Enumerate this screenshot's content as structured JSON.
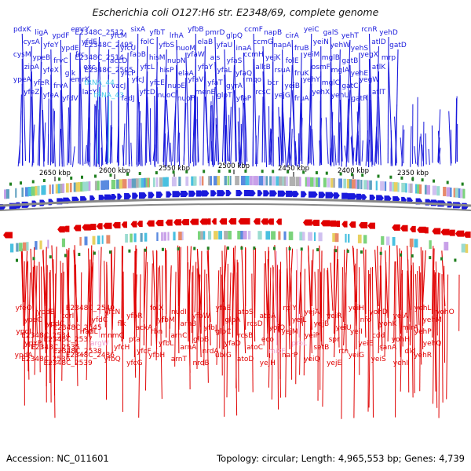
{
  "map": {
    "title": "Escherichia coli O127:H6 str. E2348/69, complete genome",
    "accession": "Accession: NC_011601",
    "summary": "Topology: circular; Length: 4,965,553 bp; Genes: 4,739"
  },
  "kbp_ticks": [
    "2650 kbp",
    "2600 kbp",
    "2550 kbp",
    "2500 kbp",
    "2450 kbp",
    "2400 kbp",
    "2350 kbp"
  ],
  "colors": {
    "forward": "#1a1adc",
    "reverse": "#e00000",
    "rna": "#44c8e8",
    "rna_reverse": "#f0a0d0",
    "backbone": "#888888"
  },
  "forward_labels": [
    {
      "text": "pdxK",
      "c": "f"
    },
    {
      "text": "cysA",
      "c": "f"
    },
    {
      "text": "cysM",
      "c": "f"
    },
    {
      "text": "zipA",
      "c": "f"
    },
    {
      "text": "ypeA",
      "c": "f"
    },
    {
      "text": "yfeZ",
      "c": "f"
    },
    {
      "text": "ligA",
      "c": "f"
    },
    {
      "text": "yfeY",
      "c": "f"
    },
    {
      "text": "ypeB",
      "c": "f"
    },
    {
      "text": "yfeX",
      "c": "f"
    },
    {
      "text": "yfeR",
      "c": "f"
    },
    {
      "text": "yfeA",
      "c": "f"
    },
    {
      "text": "ypdF",
      "c": "f"
    },
    {
      "text": "ypdE",
      "c": "f"
    },
    {
      "text": "frvC",
      "c": "f"
    },
    {
      "text": "glk",
      "c": "f"
    },
    {
      "text": "frvA",
      "c": "f"
    },
    {
      "text": "yfdV",
      "c": "f"
    },
    {
      "text": "emrY",
      "c": "f"
    },
    {
      "text": "yfdE",
      "c": "f"
    },
    {
      "text": "frc",
      "c": "f"
    },
    {
      "text": "oxc",
      "c": "f"
    },
    {
      "text": "emrK",
      "c": "f"
    },
    {
      "text": "lacY",
      "c": "f"
    },
    {
      "text": "E2348C_2512",
      "c": "f"
    },
    {
      "text": "E2348C_2495",
      "c": "f"
    },
    {
      "text": "E2348C_2514",
      "c": "f"
    },
    {
      "text": "E2348C_2505",
      "c": "f"
    },
    {
      "text": "tRNA_44",
      "c": "r"
    },
    {
      "text": "tRNA_43",
      "c": "r"
    },
    {
      "text": "yfcM",
      "c": "f"
    },
    {
      "text": "yfcU",
      "c": "f"
    },
    {
      "text": "accD",
      "c": "f"
    },
    {
      "text": "yfcP",
      "c": "f"
    },
    {
      "text": "vacJ",
      "c": "f"
    },
    {
      "text": "fadJ",
      "c": "f"
    },
    {
      "text": "sixA",
      "c": "f"
    },
    {
      "text": "folC",
      "c": "f"
    },
    {
      "text": "fabB",
      "c": "f"
    },
    {
      "text": "yfcL",
      "c": "f"
    },
    {
      "text": "yfcJ",
      "c": "f"
    },
    {
      "text": "yfcD",
      "c": "f"
    },
    {
      "text": "yfbT",
      "c": "f"
    },
    {
      "text": "yfbS",
      "c": "f"
    },
    {
      "text": "hisM",
      "c": "f"
    },
    {
      "text": "hisP",
      "c": "f"
    },
    {
      "text": "yfcE",
      "c": "f"
    },
    {
      "text": "nuoC",
      "c": "f"
    },
    {
      "text": "lrhA",
      "c": "f"
    },
    {
      "text": "nuoM",
      "c": "f"
    },
    {
      "text": "nuoN",
      "c": "f"
    },
    {
      "text": "elaA",
      "c": "f"
    },
    {
      "text": "nuoE",
      "c": "f"
    },
    {
      "text": "nuoF",
      "c": "f"
    },
    {
      "text": "yfbB",
      "c": "f"
    },
    {
      "text": "elaB",
      "c": "f"
    },
    {
      "text": "yfaW",
      "c": "f"
    },
    {
      "text": "yfaY",
      "c": "f"
    },
    {
      "text": "yfaV",
      "c": "f"
    },
    {
      "text": "menE",
      "c": "f"
    },
    {
      "text": "pmrD",
      "c": "f"
    },
    {
      "text": "yfaU",
      "c": "f"
    },
    {
      "text": "ais",
      "c": "f"
    },
    {
      "text": "yfaL",
      "c": "f"
    },
    {
      "text": "yfaT",
      "c": "f"
    },
    {
      "text": "glpT",
      "c": "f"
    },
    {
      "text": "glpQ",
      "c": "f"
    },
    {
      "text": "inaA",
      "c": "f"
    },
    {
      "text": "yfaS",
      "c": "f"
    },
    {
      "text": "yfaQ",
      "c": "f"
    },
    {
      "text": "gyrA",
      "c": "f"
    },
    {
      "text": "yfaP",
      "c": "f"
    },
    {
      "text": "ccmF",
      "c": "f"
    },
    {
      "text": "ccmG",
      "c": "f"
    },
    {
      "text": "ccmH",
      "c": "f"
    },
    {
      "text": "alkB",
      "c": "f"
    },
    {
      "text": "mqo",
      "c": "f"
    },
    {
      "text": "rcsC",
      "c": "f"
    },
    {
      "text": "napB",
      "c": "f"
    },
    {
      "text": "napA",
      "c": "f"
    },
    {
      "text": "yejK",
      "c": "f"
    },
    {
      "text": "rsuA",
      "c": "f"
    },
    {
      "text": "bcr",
      "c": "f"
    },
    {
      "text": "yejG",
      "c": "f"
    },
    {
      "text": "cirA",
      "c": "f"
    },
    {
      "text": "fruB",
      "c": "f"
    },
    {
      "text": "folE",
      "c": "f"
    },
    {
      "text": "fruK",
      "c": "f"
    },
    {
      "text": "yeiB",
      "c": "f"
    },
    {
      "text": "fruA",
      "c": "f"
    },
    {
      "text": "yeiC",
      "c": "f"
    },
    {
      "text": "yeiN",
      "c": "f"
    },
    {
      "text": "yeiM",
      "c": "f"
    },
    {
      "text": "osmF",
      "c": "f"
    },
    {
      "text": "yehY",
      "c": "f"
    },
    {
      "text": "yehX",
      "c": "f"
    },
    {
      "text": "galS",
      "c": "f"
    },
    {
      "text": "yehW",
      "c": "f"
    },
    {
      "text": "mglB",
      "c": "f"
    },
    {
      "text": "mglA",
      "c": "f"
    },
    {
      "text": "mglC",
      "c": "f"
    },
    {
      "text": "yehU",
      "c": "f"
    },
    {
      "text": "yehT",
      "c": "f"
    },
    {
      "text": "yehS",
      "c": "f"
    },
    {
      "text": "gatB",
      "c": "f"
    },
    {
      "text": "yehE",
      "c": "f"
    },
    {
      "text": "gatC",
      "c": "f"
    },
    {
      "text": "gatR",
      "c": "f"
    },
    {
      "text": "rcnR",
      "c": "f"
    },
    {
      "text": "atlD",
      "c": "f"
    },
    {
      "text": "yegX",
      "c": "f"
    },
    {
      "text": "atlK",
      "c": "f"
    },
    {
      "text": "yegW",
      "c": "f"
    },
    {
      "text": "atlT",
      "c": "f"
    },
    {
      "text": "yehD",
      "c": "f"
    },
    {
      "text": "gatD",
      "c": "f"
    },
    {
      "text": "mrp",
      "c": "f"
    }
  ],
  "reverse_labels": [
    {
      "text": "yfeO",
      "c": "r"
    },
    {
      "text": "ypeC",
      "c": "r"
    },
    {
      "text": "ypdI",
      "c": "r"
    },
    {
      "text": "ypxP",
      "c": "r"
    },
    {
      "text": "ypdA",
      "c": "r"
    },
    {
      "text": "ypdB",
      "c": "r"
    },
    {
      "text": "ypdC",
      "c": "r"
    },
    {
      "text": "E2348C_2534",
      "c": "r"
    },
    {
      "text": "E2348C_2535",
      "c": "r"
    },
    {
      "text": "E2348C_2536",
      "c": "r"
    },
    {
      "text": "torI",
      "c": "r"
    },
    {
      "text": "E2348C_2545",
      "c": "r"
    },
    {
      "text": "E2348C_2537",
      "c": "r"
    },
    {
      "text": "E2348C_2538",
      "c": "r"
    },
    {
      "text": "E2348C_2539",
      "c": "r"
    },
    {
      "text": "E2348C_2540",
      "c": "r"
    },
    {
      "text": "yfdC",
      "c": "r"
    },
    {
      "text": "fadL",
      "c": "r"
    },
    {
      "text": "argW",
      "c": "p"
    },
    {
      "text": "E2348C_2486",
      "c": "r"
    },
    {
      "text": "yfcN",
      "c": "r"
    },
    {
      "text": "flk",
      "c": "r"
    },
    {
      "text": "mnmC",
      "c": "r"
    },
    {
      "text": "yfcH",
      "c": "r"
    },
    {
      "text": "yfbQ",
      "c": "r"
    },
    {
      "text": "yfbR",
      "c": "r"
    },
    {
      "text": "ackA",
      "c": "r"
    },
    {
      "text": "pta",
      "c": "r"
    },
    {
      "text": "yfcF",
      "c": "r"
    },
    {
      "text": "yfcG",
      "c": "r"
    },
    {
      "text": "folX",
      "c": "r"
    },
    {
      "text": "yfbM",
      "c": "r"
    },
    {
      "text": "rbn",
      "c": "r"
    },
    {
      "text": "yfbL",
      "c": "r"
    },
    {
      "text": "yfbH",
      "c": "r"
    },
    {
      "text": "nudI",
      "c": "r"
    },
    {
      "text": "arnB",
      "c": "r"
    },
    {
      "text": "arnC",
      "c": "r"
    },
    {
      "text": "arnA",
      "c": "r"
    },
    {
      "text": "arnT",
      "c": "r"
    },
    {
      "text": "yfbW",
      "c": "r"
    },
    {
      "text": "yfbJ",
      "c": "r"
    },
    {
      "text": "glpB",
      "c": "r"
    },
    {
      "text": "nrdA",
      "c": "r"
    },
    {
      "text": "nrdB",
      "c": "r"
    },
    {
      "text": "yfaE",
      "c": "r"
    },
    {
      "text": "glpA",
      "c": "r"
    },
    {
      "text": "glpC",
      "c": "r"
    },
    {
      "text": "yfaD",
      "c": "r"
    },
    {
      "text": "ubiG",
      "c": "r"
    },
    {
      "text": "atoS",
      "c": "r"
    },
    {
      "text": "rcsD",
      "c": "r"
    },
    {
      "text": "rcsB",
      "c": "r"
    },
    {
      "text": "atoC",
      "c": "r"
    },
    {
      "text": "atoD",
      "c": "r"
    },
    {
      "text": "atoA",
      "c": "r"
    },
    {
      "text": "yojO",
      "c": "r"
    },
    {
      "text": "eco",
      "c": "r"
    },
    {
      "text": "micF",
      "c": "p"
    },
    {
      "text": "yejH",
      "c": "r"
    },
    {
      "text": "rplY",
      "c": "r"
    },
    {
      "text": "yejL",
      "c": "r"
    },
    {
      "text": "yejM",
      "c": "r"
    },
    {
      "text": "proL",
      "c": "p"
    },
    {
      "text": "narP",
      "c": "r"
    },
    {
      "text": "yejA",
      "c": "r"
    },
    {
      "text": "yejB",
      "c": "r"
    },
    {
      "text": "yeiP",
      "c": "r"
    },
    {
      "text": "setB",
      "c": "r"
    },
    {
      "text": "yeiQ",
      "c": "r"
    },
    {
      "text": "yeiR",
      "c": "r"
    },
    {
      "text": "yeiU",
      "c": "r"
    },
    {
      "text": "spr",
      "c": "r"
    },
    {
      "text": "rtn",
      "c": "r"
    },
    {
      "text": "yejE",
      "c": "r"
    },
    {
      "text": "yeiH",
      "c": "r"
    },
    {
      "text": "nfo",
      "c": "r"
    },
    {
      "text": "yeiI",
      "c": "r"
    },
    {
      "text": "yeiE",
      "c": "r"
    },
    {
      "text": "yeiG",
      "c": "r"
    },
    {
      "text": "yohD",
      "c": "r"
    },
    {
      "text": "yohK",
      "c": "r"
    },
    {
      "text": "cdd",
      "c": "r"
    },
    {
      "text": "sanA",
      "c": "r"
    },
    {
      "text": "yeiS",
      "c": "r"
    },
    {
      "text": "yeiA",
      "c": "r"
    },
    {
      "text": "mlrA",
      "c": "r"
    },
    {
      "text": "yohH",
      "c": "r"
    },
    {
      "text": "dld",
      "c": "r"
    },
    {
      "text": "yehI",
      "c": "r"
    },
    {
      "text": "yehL",
      "c": "r"
    },
    {
      "text": "yehM",
      "c": "r"
    },
    {
      "text": "yehP",
      "c": "r"
    },
    {
      "text": "yehQ",
      "c": "r"
    },
    {
      "text": "yehR",
      "c": "r"
    },
    {
      "text": "yohO",
      "c": "r"
    }
  ]
}
